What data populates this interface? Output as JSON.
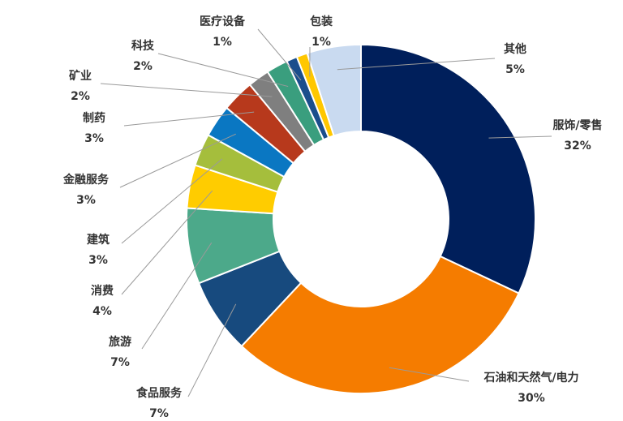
{
  "chart_data": {
    "type": "pie",
    "variant": "donut",
    "title": "",
    "start_angle_deg": 0,
    "direction": "clockwise",
    "slices": [
      {
        "label": "服饰/零售",
        "value": 32,
        "value_label": "32%",
        "color": "#001F5B"
      },
      {
        "label": "石油和天然气/电力",
        "value": 30,
        "value_label": "30%",
        "color": "#F57C00"
      },
      {
        "label": "食品服务",
        "value": 7,
        "value_label": "7%",
        "color": "#174A7E"
      },
      {
        "label": "旅游",
        "value": 7,
        "value_label": "7%",
        "color": "#4CA98A"
      },
      {
        "label": "消费",
        "value": 4,
        "value_label": "4%",
        "color": "#FFCC00"
      },
      {
        "label": "建筑",
        "value": 3,
        "value_label": "3%",
        "color": "#A5BE3C"
      },
      {
        "label": "金融服务",
        "value": 3,
        "value_label": "3%",
        "color": "#0A77C2"
      },
      {
        "label": "制药",
        "value": 3,
        "value_label": "3%",
        "color": "#B7391C"
      },
      {
        "label": "矿业",
        "value": 2,
        "value_label": "2%",
        "color": "#7F7F7F"
      },
      {
        "label": "科技",
        "value": 2,
        "value_label": "2%",
        "color": "#3A9E7E"
      },
      {
        "label": "医疗设备",
        "value": 1,
        "value_label": "1%",
        "color": "#1B4E8C"
      },
      {
        "label": "包装",
        "value": 1,
        "value_label": "1%",
        "color": "#FFC700"
      },
      {
        "label": "其他",
        "value": 5,
        "value_label": "5%",
        "color": "#C9DAF0"
      }
    ]
  }
}
